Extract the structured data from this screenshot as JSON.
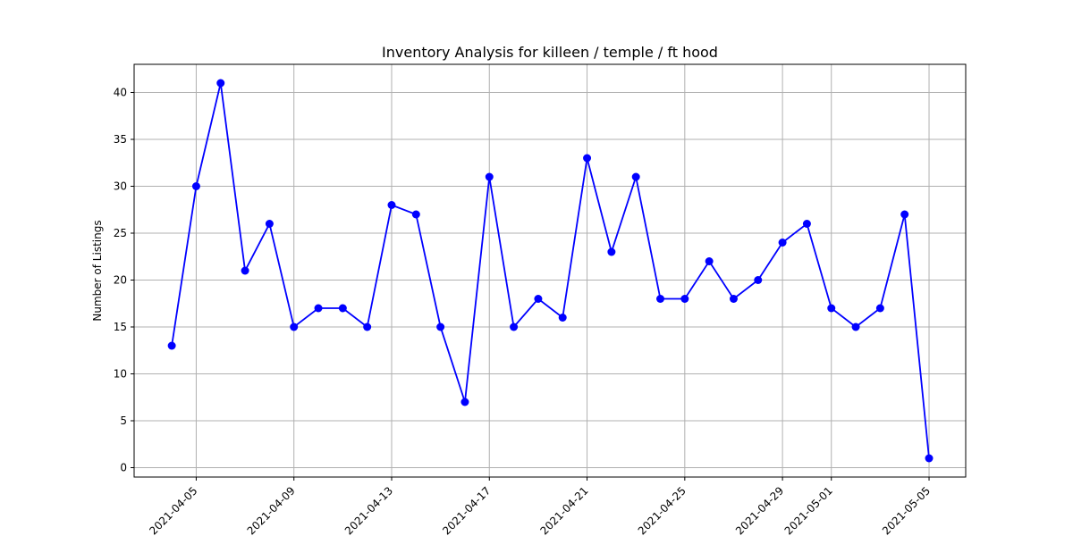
{
  "chart_data": {
    "type": "line",
    "title": "Inventory Analysis for killeen / temple / ft hood",
    "xlabel": "",
    "ylabel": "Number of Listings",
    "x_ticks": [
      "2021-04-05",
      "2021-04-09",
      "2021-04-13",
      "2021-04-17",
      "2021-04-21",
      "2021-04-25",
      "2021-04-29",
      "2021-05-01",
      "2021-05-05"
    ],
    "y_ticks": [
      0,
      5,
      10,
      15,
      20,
      25,
      30,
      35,
      40
    ],
    "xlim": [
      "2021-04-02T11:00",
      "2021-05-06T12:00"
    ],
    "ylim": [
      -1,
      43
    ],
    "grid": true,
    "legend": "none",
    "series_color": "#0000ff",
    "x": [
      "2021-04-04",
      "2021-04-05",
      "2021-04-06",
      "2021-04-07",
      "2021-04-08",
      "2021-04-09",
      "2021-04-10",
      "2021-04-11",
      "2021-04-12",
      "2021-04-13",
      "2021-04-14",
      "2021-04-15",
      "2021-04-16",
      "2021-04-17",
      "2021-04-18",
      "2021-04-19",
      "2021-04-20",
      "2021-04-21",
      "2021-04-22",
      "2021-04-23",
      "2021-04-24",
      "2021-04-25",
      "2021-04-26",
      "2021-04-27",
      "2021-04-28",
      "2021-04-29",
      "2021-04-30",
      "2021-05-01",
      "2021-05-02",
      "2021-05-03",
      "2021-05-04",
      "2021-05-05"
    ],
    "series": [
      {
        "values": [
          13,
          30,
          41,
          21,
          26,
          15,
          17,
          17,
          15,
          28,
          27,
          15,
          7,
          31,
          15,
          18,
          16,
          33,
          23,
          31,
          18,
          18,
          22,
          18,
          20,
          24,
          26,
          17,
          15,
          17,
          27,
          1
        ]
      }
    ]
  }
}
